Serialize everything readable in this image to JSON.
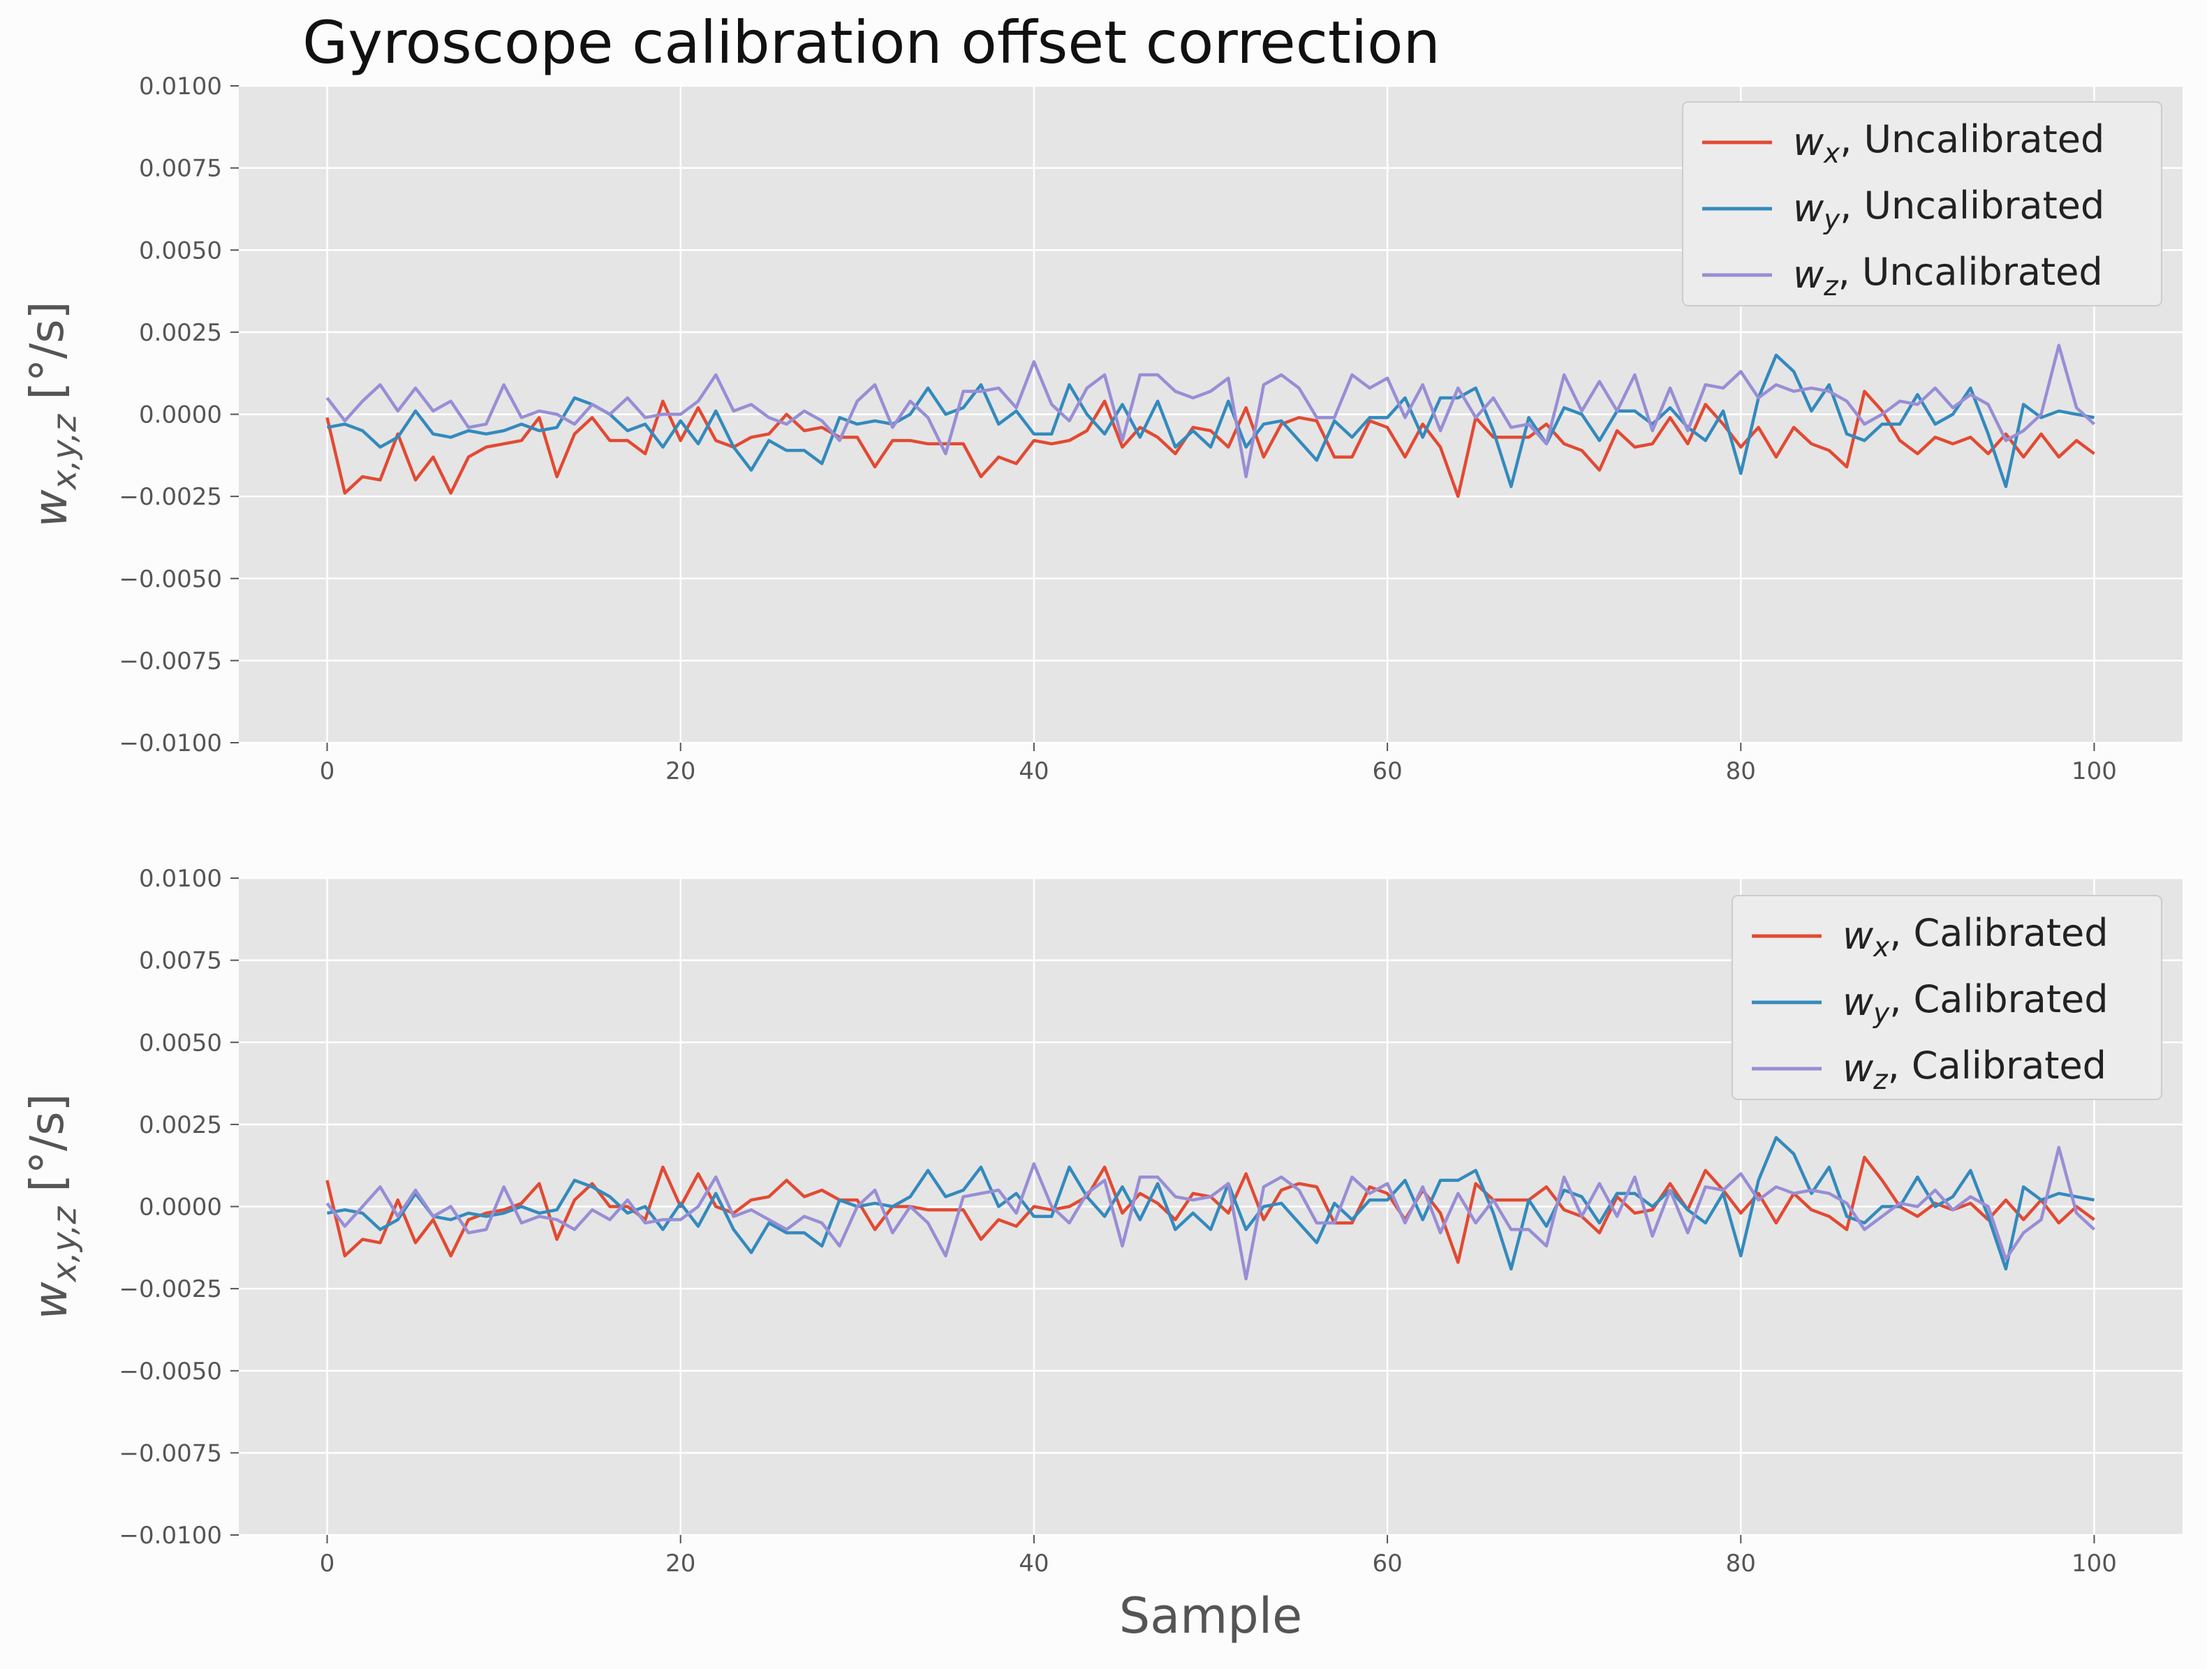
{
  "title": "Gyroscope calibration offset correction",
  "colors": {
    "wx": "#E24A33",
    "wy": "#348ABD",
    "wz": "#988ED5",
    "axes_bg": "#E5E5E5",
    "grid": "#FFFFFF",
    "figure_bg": "#FCFCFC"
  },
  "chart_data": [
    {
      "type": "line",
      "title": "",
      "xlabel": "",
      "ylabel": "w_{x,y,z} [°/s]",
      "xlim": [
        -5,
        105
      ],
      "ylim": [
        -0.01,
        0.01
      ],
      "xticks": [
        "0",
        "20",
        "40",
        "60",
        "80",
        "100"
      ],
      "yticks": [
        "0.0100",
        "0.0075",
        "0.0050",
        "0.0025",
        "0.0000",
        "−0.0025",
        "−0.0050",
        "−0.0075",
        "−0.0100"
      ],
      "grid": true,
      "legend": "top-right",
      "x_start": 0,
      "series": [
        {
          "name": "w_x, Uncalibrated",
          "color_key": "wx",
          "values": [
            -0.0001,
            -0.0024,
            -0.0019,
            -0.002,
            -0.0006,
            -0.002,
            -0.0013,
            -0.0024,
            -0.0013,
            -0.001,
            -0.0009,
            -0.0008,
            -0.0001,
            -0.0019,
            -0.0006,
            -0.0001,
            -0.0008,
            -0.0008,
            -0.0012,
            0.0004,
            -0.0008,
            0.0002,
            -0.0008,
            -0.001,
            -0.0007,
            -0.0006,
            0.0,
            -0.0005,
            -0.0004,
            -0.0007,
            -0.0007,
            -0.0016,
            -0.0008,
            -0.0008,
            -0.0009,
            -0.0009,
            -0.0009,
            -0.0019,
            -0.0013,
            -0.0015,
            -0.0008,
            -0.0009,
            -0.0008,
            -0.0005,
            0.0004,
            -0.001,
            -0.0004,
            -0.0007,
            -0.0012,
            -0.0004,
            -0.0005,
            -0.001,
            0.0002,
            -0.0013,
            -0.0003,
            -0.0001,
            -0.0002,
            -0.0013,
            -0.0013,
            -0.0002,
            -0.0004,
            -0.0013,
            -0.0003,
            -0.001,
            -0.0025,
            -0.0001,
            -0.0007,
            -0.0007,
            -0.0007,
            -0.0003,
            -0.0009,
            -0.0011,
            -0.0017,
            -0.0005,
            -0.001,
            -0.0009,
            -0.0001,
            -0.0009,
            0.0003,
            -0.0003,
            -0.001,
            -0.0004,
            -0.0013,
            -0.0004,
            -0.0009,
            -0.0011,
            -0.0016,
            0.0007,
            0.0001,
            -0.0008,
            -0.0012,
            -0.0007,
            -0.0009,
            -0.0007,
            -0.0012,
            -0.0006,
            -0.0013,
            -0.0006,
            -0.0013,
            -0.0008,
            -0.0012
          ]
        },
        {
          "name": "w_y, Uncalibrated",
          "color_key": "wy",
          "values": [
            -0.0004,
            -0.0003,
            -0.0005,
            -0.001,
            -0.0007,
            0.0001,
            -0.0006,
            -0.0007,
            -0.0005,
            -0.0006,
            -0.0005,
            -0.0003,
            -0.0005,
            -0.0004,
            0.0005,
            0.0003,
            0.0,
            -0.0005,
            -0.0003,
            -0.001,
            -0.0002,
            -0.0009,
            0.0001,
            -0.001,
            -0.0017,
            -0.0008,
            -0.0011,
            -0.0011,
            -0.0015,
            -0.0001,
            -0.0003,
            -0.0002,
            -0.0003,
            0.0,
            0.0008,
            0.0,
            0.0002,
            0.0009,
            -0.0003,
            0.0001,
            -0.0006,
            -0.0006,
            0.0009,
            0.0,
            -0.0006,
            0.0003,
            -0.0007,
            0.0004,
            -0.001,
            -0.0005,
            -0.001,
            0.0004,
            -0.001,
            -0.0003,
            -0.0002,
            -0.0008,
            -0.0014,
            -0.0002,
            -0.0007,
            -0.0001,
            -0.0001,
            0.0005,
            -0.0007,
            0.0005,
            0.0005,
            0.0008,
            -0.0005,
            -0.0022,
            -0.0001,
            -0.0009,
            0.0002,
            0.0,
            -0.0008,
            0.0001,
            0.0001,
            -0.0003,
            0.0002,
            -0.0004,
            -0.0008,
            0.0001,
            -0.0018,
            0.0005,
            0.0018,
            0.0013,
            0.0001,
            0.0009,
            -0.0006,
            -0.0008,
            -0.0003,
            -0.0003,
            0.0006,
            -0.0003,
            0.0,
            0.0008,
            -0.0006,
            -0.0022,
            0.0003,
            -0.0001,
            0.0001,
            0.0,
            -0.0001
          ]
        },
        {
          "name": "w_z, Uncalibrated",
          "color_key": "wz",
          "values": [
            0.0005,
            -0.0002,
            0.0004,
            0.0009,
            0.0001,
            0.0008,
            0.0001,
            0.0004,
            -0.0004,
            -0.0003,
            0.0009,
            -0.0001,
            0.0001,
            0.0,
            -0.0003,
            0.0003,
            0.0,
            0.0005,
            -0.0001,
            0.0,
            0.0,
            0.0004,
            0.0012,
            0.0001,
            0.0003,
            -0.0001,
            -0.0003,
            0.0001,
            -0.0002,
            -0.0008,
            0.0004,
            0.0009,
            -0.0004,
            0.0004,
            -0.0001,
            -0.0012,
            0.0007,
            0.0007,
            0.0008,
            0.0002,
            0.0016,
            0.0003,
            -0.0002,
            0.0008,
            0.0012,
            -0.0008,
            0.0012,
            0.0012,
            0.0007,
            0.0005,
            0.0007,
            0.0011,
            -0.0019,
            0.0009,
            0.0012,
            0.0008,
            -0.0001,
            -0.0001,
            0.0012,
            0.0008,
            0.0011,
            -0.0001,
            0.0009,
            -0.0005,
            0.0008,
            -0.0001,
            0.0005,
            -0.0004,
            -0.0003,
            -0.0009,
            0.0012,
            0.0001,
            0.001,
            0.0001,
            0.0012,
            -0.0005,
            0.0008,
            -0.0005,
            0.0009,
            0.0008,
            0.0013,
            0.0005,
            0.0009,
            0.0007,
            0.0008,
            0.0007,
            0.0004,
            -0.0003,
            0.0,
            0.0004,
            0.0003,
            0.0008,
            0.0002,
            0.0006,
            0.0003,
            -0.0008,
            -0.0005,
            0.0,
            0.0021,
            0.0002,
            -0.0003
          ]
        }
      ]
    },
    {
      "type": "line",
      "title": "",
      "xlabel": "Sample",
      "ylabel": "w_{x,y,z} [°/s]",
      "xlim": [
        -5,
        105
      ],
      "ylim": [
        -0.01,
        0.01
      ],
      "xticks": [
        "0",
        "20",
        "40",
        "60",
        "80",
        "100"
      ],
      "yticks": [
        "0.0100",
        "0.0075",
        "0.0050",
        "0.0025",
        "0.0000",
        "−0.0025",
        "−0.0050",
        "−0.0075",
        "−0.0100"
      ],
      "grid": true,
      "legend": "top-right",
      "x_start": 0,
      "series": [
        {
          "name": "w_x, Calibrated",
          "color_key": "wx",
          "values": [
            0.0008,
            -0.0015,
            -0.001,
            -0.0011,
            0.0002,
            -0.0011,
            -0.0004,
            -0.0015,
            -0.0004,
            -0.0002,
            -0.0001,
            0.0001,
            0.0007,
            -0.001,
            0.0002,
            0.0007,
            0.0,
            0.0,
            -0.0004,
            0.0012,
            0.0,
            0.001,
            0.0,
            -0.0002,
            0.0002,
            0.0003,
            0.0008,
            0.0003,
            0.0005,
            0.0002,
            0.0002,
            -0.0007,
            0.0,
            0.0,
            -0.0001,
            -0.0001,
            -0.0001,
            -0.001,
            -0.0004,
            -0.0006,
            0.0,
            -0.0001,
            0.0,
            0.0003,
            0.0012,
            -0.0002,
            0.0004,
            0.0001,
            -0.0004,
            0.0004,
            0.0003,
            -0.0002,
            0.001,
            -0.0004,
            0.0005,
            0.0007,
            0.0006,
            -0.0005,
            -0.0005,
            0.0006,
            0.0004,
            -0.0004,
            0.0005,
            -0.0002,
            -0.0017,
            0.0007,
            0.0002,
            0.0002,
            0.0002,
            0.0006,
            -0.0001,
            -0.0003,
            -0.0008,
            0.0003,
            -0.0002,
            -0.0001,
            0.0007,
            -0.0001,
            0.0011,
            0.0005,
            -0.0002,
            0.0004,
            -0.0005,
            0.0004,
            -0.0001,
            -0.0003,
            -0.0007,
            0.0015,
            0.0008,
            0.0,
            -0.0003,
            0.0001,
            -0.0001,
            0.0001,
            -0.0004,
            0.0002,
            -0.0004,
            0.0002,
            -0.0005,
            0.0,
            -0.0004
          ]
        },
        {
          "name": "w_y, Calibrated",
          "color_key": "wy",
          "values": [
            -0.0002,
            -0.0001,
            -0.0002,
            -0.0007,
            -0.0004,
            0.0004,
            -0.0003,
            -0.0004,
            -0.0002,
            -0.0003,
            -0.0002,
            0.0,
            -0.0002,
            -0.0001,
            0.0008,
            0.0006,
            0.0003,
            -0.0002,
            0.0,
            -0.0007,
            0.0001,
            -0.0006,
            0.0004,
            -0.0007,
            -0.0014,
            -0.0005,
            -0.0008,
            -0.0008,
            -0.0012,
            0.0002,
            0.0,
            0.0001,
            0.0,
            0.0003,
            0.0011,
            0.0003,
            0.0005,
            0.0012,
            0.0,
            0.0004,
            -0.0003,
            -0.0003,
            0.0012,
            0.0003,
            -0.0003,
            0.0006,
            -0.0004,
            0.0007,
            -0.0007,
            -0.0002,
            -0.0007,
            0.0007,
            -0.0007,
            0.0,
            0.0001,
            -0.0005,
            -0.0011,
            0.0001,
            -0.0004,
            0.0002,
            0.0002,
            0.0008,
            -0.0004,
            0.0008,
            0.0008,
            0.0011,
            -0.0002,
            -0.0019,
            0.0002,
            -0.0006,
            0.0005,
            0.0003,
            -0.0005,
            0.0004,
            0.0004,
            0.0,
            0.0005,
            -0.0001,
            -0.0005,
            0.0004,
            -0.0015,
            0.0008,
            0.0021,
            0.0016,
            0.0004,
            0.0012,
            -0.0003,
            -0.0005,
            0.0,
            0.0,
            0.0009,
            0.0,
            0.0003,
            0.0011,
            -0.0003,
            -0.0019,
            0.0006,
            0.0002,
            0.0004,
            0.0003,
            0.0002
          ]
        },
        {
          "name": "w_z, Calibrated",
          "color_key": "wz",
          "values": [
            0.0001,
            -0.0006,
            0.0,
            0.0006,
            -0.0003,
            0.0005,
            -0.0003,
            0.0,
            -0.0008,
            -0.0007,
            0.0006,
            -0.0005,
            -0.0003,
            -0.0004,
            -0.0007,
            -0.0001,
            -0.0004,
            0.0002,
            -0.0005,
            -0.0004,
            -0.0004,
            0.0,
            0.0009,
            -0.0003,
            -0.0001,
            -0.0004,
            -0.0007,
            -0.0003,
            -0.0005,
            -0.0012,
            0.0,
            0.0005,
            -0.0008,
            0.0,
            -0.0005,
            -0.0015,
            0.0003,
            0.0004,
            0.0005,
            -0.0002,
            0.0013,
            0.0,
            -0.0005,
            0.0004,
            0.0008,
            -0.0012,
            0.0009,
            0.0009,
            0.0003,
            0.0002,
            0.0003,
            0.0007,
            -0.0022,
            0.0006,
            0.0009,
            0.0005,
            -0.0005,
            -0.0005,
            0.0009,
            0.0004,
            0.0007,
            -0.0005,
            0.0006,
            -0.0008,
            0.0004,
            -0.0005,
            0.0002,
            -0.0007,
            -0.0007,
            -0.0012,
            0.0009,
            -0.0003,
            0.0007,
            -0.0003,
            0.0009,
            -0.0009,
            0.0005,
            -0.0008,
            0.0006,
            0.0005,
            0.001,
            0.0002,
            0.0006,
            0.0004,
            0.0005,
            0.0004,
            0.0001,
            -0.0007,
            -0.0003,
            0.0001,
            0.0,
            0.0005,
            -0.0001,
            0.0003,
            0.0,
            -0.0016,
            -0.0008,
            -0.0004,
            0.0018,
            -0.0002,
            -0.0007
          ]
        }
      ]
    }
  ]
}
